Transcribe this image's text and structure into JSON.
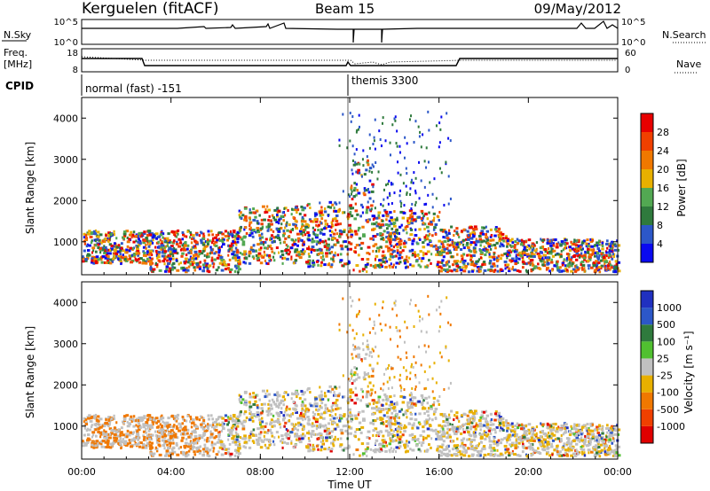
{
  "header": {
    "station": "Kerguelen (fitACF)",
    "beam": "Beam 15",
    "date": "09/May/2012"
  },
  "nsky_panel": {
    "left_label": "N.Sky",
    "right_label": "N.Search",
    "left_ticks": [
      "10^5",
      "10^0"
    ],
    "right_ticks": [
      "10^5",
      "10^0"
    ]
  },
  "freq_panel": {
    "left_label_1": "Freq.",
    "left_label_2": "[MHz]",
    "right_label": "Nave",
    "left_ticks": [
      "18",
      "8"
    ],
    "right_ticks": [
      "60",
      "0"
    ]
  },
  "cpid": {
    "label": "CPID",
    "modes": [
      {
        "name": "normal (fast) -151",
        "start_hour": 0
      },
      {
        "name": "themis 3300",
        "start_hour": 12
      }
    ]
  },
  "colors": {
    "power": [
      "#0a0af0",
      "#2c57c8",
      "#2f7a3d",
      "#52a852",
      "#e8b000",
      "#f07800",
      "#f04000",
      "#e80000"
    ],
    "velocity": [
      "#2030c0",
      "#2c57c8",
      "#2f7a3d",
      "#50c030",
      "#c0c0c0",
      "#e8b000",
      "#f07800",
      "#f04000",
      "#e00000"
    ]
  },
  "chart_data": [
    {
      "type": "heatmap",
      "ylabel": "Slant Range [km]",
      "x": {
        "range": [
          0,
          24
        ],
        "ticks": [
          "00:00",
          "04:00",
          "08:00",
          "12:00",
          "16:00",
          "20:00",
          "00:00"
        ]
      },
      "y": {
        "range": [
          200,
          4500
        ],
        "ticks": [
          1000,
          2000,
          3000,
          4000
        ]
      },
      "colorbar": {
        "label": "Power [dB]",
        "ticks": [
          "28",
          "24",
          "20",
          "16",
          "12",
          "8",
          "4"
        ],
        "range": [
          0,
          32
        ]
      }
    },
    {
      "type": "heatmap",
      "ylabel": "Slant Range [km]",
      "xlabel": "Time UT",
      "x": {
        "range": [
          0,
          24
        ],
        "ticks": [
          "00:00",
          "04:00",
          "08:00",
          "12:00",
          "16:00",
          "20:00",
          "00:00"
        ]
      },
      "y": {
        "range": [
          200,
          4500
        ],
        "ticks": [
          1000,
          2000,
          3000,
          4000
        ]
      },
      "colorbar": {
        "label": "Velocity [m s⁻¹]",
        "ticks": [
          "1000",
          "500",
          "100",
          "25",
          "-25",
          "-100",
          "-500",
          "-1000"
        ]
      }
    }
  ]
}
